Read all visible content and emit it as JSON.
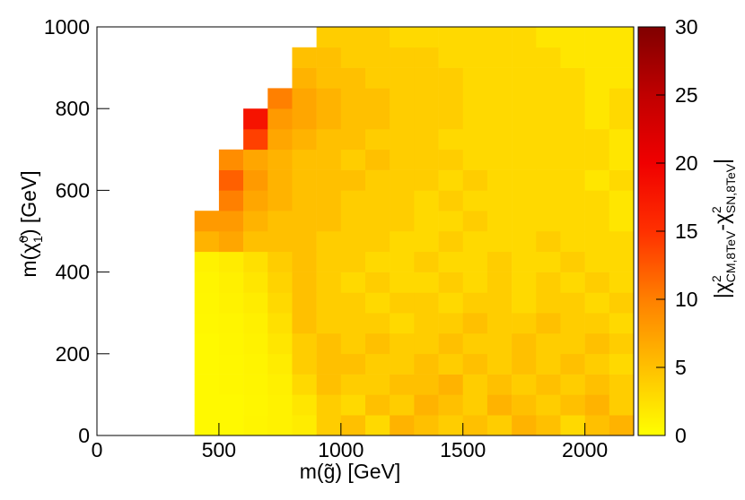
{
  "chart_data": {
    "type": "heatmap",
    "xlabel": "m(g̃) [GeV]",
    "ylabel": [
      "m(χ̃",
      "0",
      "1",
      ") [GeV]"
    ],
    "zlabel": [
      "|χ",
      "2",
      "CM,8TeV",
      "-χ",
      "2",
      "SN,8TeV",
      "|"
    ],
    "xbins": [
      0,
      100,
      200,
      300,
      400,
      500,
      600,
      700,
      800,
      900,
      1000,
      1100,
      1200,
      1300,
      1400,
      1500,
      1600,
      1700,
      1800,
      1900,
      2000,
      2100,
      2200
    ],
    "ybins": [
      0,
      50,
      100,
      150,
      200,
      250,
      300,
      350,
      400,
      450,
      500,
      550,
      600,
      650,
      700,
      750,
      800,
      850,
      900,
      950,
      1000
    ],
    "xlim": [
      0,
      2200
    ],
    "xticks": [
      0,
      500,
      1000,
      1500,
      2000
    ],
    "ylim": [
      0,
      1000
    ],
    "yticks": [
      0,
      200,
      400,
      600,
      800,
      1000
    ],
    "zlim": [
      0,
      30
    ],
    "zticks": [
      0,
      5,
      10,
      15,
      20,
      25,
      30
    ],
    "z": [
      [
        null,
        null,
        null,
        null,
        0.5,
        0.5,
        0.8,
        1.0,
        1.5,
        4,
        5,
        3,
        6,
        5,
        4,
        5,
        4,
        6,
        5,
        3,
        5,
        6
      ],
      [
        null,
        null,
        null,
        null,
        0.5,
        0.5,
        0.7,
        1.0,
        2,
        4,
        3,
        5,
        4,
        6,
        5,
        4,
        6,
        5,
        4,
        5,
        6,
        4
      ],
      [
        null,
        null,
        null,
        null,
        0.5,
        0.6,
        0.8,
        1.2,
        3,
        5,
        4,
        4,
        5,
        5,
        6,
        4,
        5,
        4,
        5,
        4,
        5,
        4
      ],
      [
        null,
        null,
        null,
        null,
        0.5,
        0.6,
        0.9,
        1.5,
        4,
        5,
        5,
        4,
        4,
        5,
        4,
        5,
        4,
        5,
        4,
        5,
        4,
        3
      ],
      [
        null,
        null,
        null,
        null,
        0.5,
        0.7,
        1.0,
        2,
        4,
        5,
        4,
        5,
        4,
        4,
        5,
        4,
        4,
        5,
        4,
        4,
        5,
        4
      ],
      [
        null,
        null,
        null,
        null,
        0.6,
        0.8,
        1.2,
        2.5,
        5,
        4,
        4,
        4,
        3,
        4,
        4,
        5,
        4,
        4,
        5,
        4,
        4,
        3
      ],
      [
        null,
        null,
        null,
        null,
        0.7,
        1.0,
        1.5,
        3,
        5,
        4,
        4,
        3,
        4,
        4,
        3,
        4,
        4,
        3,
        4,
        4,
        3,
        4
      ],
      [
        null,
        null,
        null,
        null,
        0.8,
        1.2,
        2,
        3.5,
        5,
        4,
        3,
        4,
        3,
        3,
        4,
        3,
        4,
        3,
        4,
        3,
        4,
        3
      ],
      [
        null,
        null,
        null,
        null,
        1.0,
        1.5,
        2.5,
        4,
        5,
        4,
        4,
        3,
        3,
        4,
        3,
        3,
        4,
        3,
        3,
        4,
        3,
        3
      ],
      [
        null,
        null,
        null,
        null,
        6,
        7,
        5,
        5,
        5,
        4,
        4,
        4,
        3,
        3,
        4,
        3,
        3,
        3,
        4,
        3,
        3,
        3
      ],
      [
        null,
        null,
        null,
        null,
        8,
        8,
        6,
        5,
        5,
        5,
        4,
        4,
        4,
        3,
        3,
        4,
        3,
        3,
        3,
        3,
        3,
        2
      ],
      [
        null,
        null,
        null,
        null,
        null,
        10,
        7,
        6,
        5,
        5,
        4,
        4,
        4,
        3,
        4,
        3,
        3,
        3,
        3,
        3,
        3,
        2
      ],
      [
        null,
        null,
        null,
        null,
        null,
        12,
        8,
        6,
        5,
        5,
        5,
        4,
        4,
        4,
        3,
        4,
        3,
        3,
        3,
        3,
        2,
        3
      ],
      [
        null,
        null,
        null,
        null,
        null,
        9,
        7,
        6,
        5,
        5,
        4,
        5,
        4,
        4,
        4,
        3,
        3,
        3,
        3,
        3,
        3,
        2
      ],
      [
        null,
        null,
        null,
        null,
        null,
        null,
        14,
        7,
        6,
        5,
        5,
        4,
        4,
        4,
        3,
        3,
        3,
        3,
        3,
        3,
        3,
        2
      ],
      [
        null,
        null,
        null,
        null,
        null,
        null,
        18,
        8,
        7,
        6,
        5,
        5,
        4,
        4,
        4,
        3,
        3,
        3,
        3,
        3,
        2,
        3
      ],
      [
        null,
        null,
        null,
        null,
        null,
        null,
        null,
        10,
        7,
        6,
        5,
        5,
        4,
        4,
        4,
        3,
        3,
        3,
        3,
        3,
        2,
        3
      ],
      [
        null,
        null,
        null,
        null,
        null,
        null,
        null,
        null,
        6,
        5,
        5,
        4,
        4,
        4,
        4,
        3,
        3,
        3,
        3,
        3,
        2,
        2
      ],
      [
        null,
        null,
        null,
        null,
        null,
        null,
        null,
        null,
        5,
        5,
        4,
        4,
        4,
        4,
        3,
        3,
        3,
        3,
        3,
        2,
        2,
        2
      ],
      [
        null,
        null,
        null,
        null,
        null,
        null,
        null,
        null,
        null,
        4,
        4,
        4,
        3,
        3,
        3,
        3,
        3,
        3,
        2,
        2,
        2,
        2
      ]
    ]
  }
}
